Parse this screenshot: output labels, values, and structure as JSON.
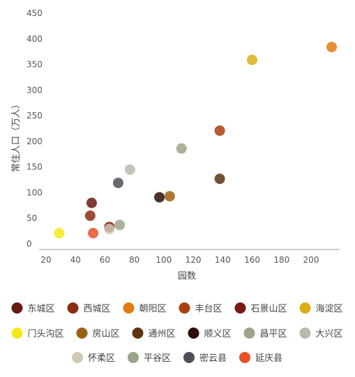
{
  "chart_data": {
    "type": "scatter",
    "xlabel": "园数",
    "ylabel": "常住人口（万人）",
    "xlim": [
      10,
      220
    ],
    "ylim": [
      0,
      450
    ],
    "xticks": [
      20,
      40,
      60,
      80,
      100,
      120,
      140,
      160,
      180,
      200
    ],
    "yticks": [
      0,
      50,
      100,
      150,
      200,
      250,
      300,
      350,
      400,
      450
    ],
    "grid": false,
    "legend_position": "bottom",
    "series": [
      {
        "name": "东城区",
        "color": "#6b1a10",
        "points": [
          [
            51,
            80
          ]
        ]
      },
      {
        "name": "西城区",
        "color": "#8f2a14",
        "points": [
          [
            50,
            55
          ]
        ]
      },
      {
        "name": "朝阳区",
        "color": "#e07b10",
        "points": [
          [
            214,
            384
          ]
        ]
      },
      {
        "name": "丰台区",
        "color": "#a8400f",
        "points": [
          [
            138,
            221
          ]
        ]
      },
      {
        "name": "石景山区",
        "color": "#7a1b12",
        "points": [
          [
            63,
            33
          ]
        ]
      },
      {
        "name": "海淀区",
        "color": "#dcae14",
        "points": [
          [
            160,
            359
          ]
        ]
      },
      {
        "name": "门头沟区",
        "color": "#f8ea1a",
        "points": [
          [
            29,
            21
          ]
        ]
      },
      {
        "name": "房山区",
        "color": "#9c6212",
        "points": [
          [
            104,
            93
          ]
        ]
      },
      {
        "name": "通州区",
        "color": "#5c3410",
        "points": [
          [
            138,
            127
          ]
        ]
      },
      {
        "name": "顺义区",
        "color": "#2a0e05",
        "points": [
          [
            97,
            91
          ]
        ]
      },
      {
        "name": "昌平区",
        "color": "#9ca48a",
        "points": [
          [
            112,
            186
          ]
        ]
      },
      {
        "name": "大兴区",
        "color": "#b9bbaa",
        "points": [
          [
            77,
            145
          ]
        ]
      },
      {
        "name": "怀柔区",
        "color": "#d0c8b2",
        "points": [
          [
            63,
            29
          ]
        ]
      },
      {
        "name": "平谷区",
        "color": "#9aa488",
        "points": [
          [
            70,
            37
          ]
        ]
      },
      {
        "name": "密云县",
        "color": "#4c5158",
        "points": [
          [
            69,
            119
          ]
        ]
      },
      {
        "name": "延庆县",
        "color": "#e6502a",
        "points": [
          [
            52,
            21
          ]
        ]
      }
    ]
  }
}
